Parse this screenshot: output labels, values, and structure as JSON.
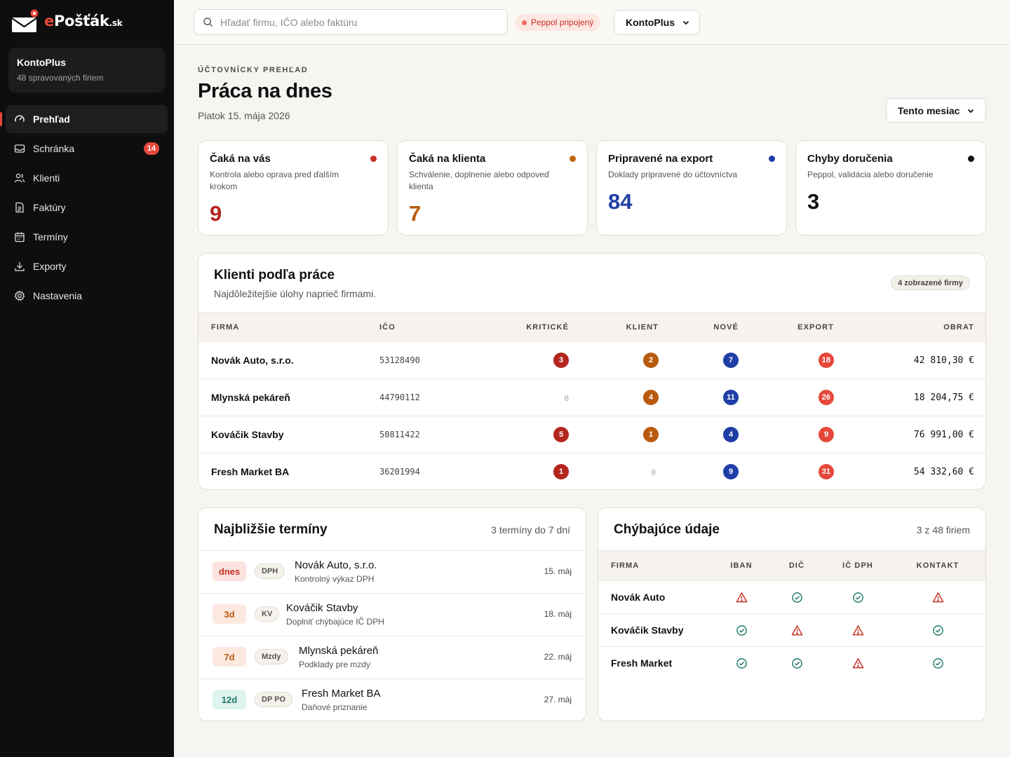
{
  "brand": {
    "e": "e",
    "name": "Pošťák",
    "tld": ".sk"
  },
  "org": {
    "name": "KontoPlus",
    "sub": "48 spravovaných firiem"
  },
  "nav": [
    {
      "label": "Prehľad",
      "icon": "dashboard-icon",
      "active": true
    },
    {
      "label": "Schránka",
      "icon": "inbox-icon",
      "badge": "14"
    },
    {
      "label": "Klienti",
      "icon": "users-icon"
    },
    {
      "label": "Faktúry",
      "icon": "document-icon"
    },
    {
      "label": "Termíny",
      "icon": "calendar-icon"
    },
    {
      "label": "Exporty",
      "icon": "download-icon"
    },
    {
      "label": "Nastavenia",
      "icon": "gear-icon"
    }
  ],
  "topbar": {
    "search_placeholder": "Hľadať firmu, IČO alebo faktúru",
    "peppol": "Peppol pripojený",
    "org_select": "KontoPlus"
  },
  "header": {
    "kicker": "ÚČTOVNÍCKY PREHĽAD",
    "title": "Práca na dnes",
    "date": "Piatok 15. mája 2026",
    "period": "Tento mesiac"
  },
  "stats": [
    {
      "title": "Čaká na vás",
      "desc": "Kontrola alebo oprava pred ďalším krokom",
      "value": "9",
      "color": "#b3261e"
    },
    {
      "title": "Čaká na klienta",
      "desc": "Schválenie, doplnenie alebo odpoveď klienta",
      "value": "7",
      "color": "#b85a0d"
    },
    {
      "title": "Pripravené na export",
      "desc": "Doklady pripravené do účtovníctva",
      "value": "84",
      "color": "#1f3ea6"
    },
    {
      "title": "Chyby doručenia",
      "desc": "Peppol, validácia alebo doručenie",
      "value": "3",
      "color": "#111111"
    }
  ],
  "clients": {
    "title": "Klienti podľa práce",
    "sub": "Najdôležitejšie úlohy naprieč firmami.",
    "chip": "4 zobrazené firmy",
    "columns": [
      "FIRMA",
      "IČO",
      "KRITICKÉ",
      "KLIENT",
      "NOVÉ",
      "EXPORT",
      "OBRAT"
    ],
    "rows": [
      {
        "firm": "Novák Auto, s.r.o.",
        "ico": "53128490",
        "kriticke": "3",
        "klient": "2",
        "nove": "7",
        "export": "18",
        "obrat": "42 810,30 €"
      },
      {
        "firm": "Mlynská pekáreň",
        "ico": "44790112",
        "kriticke": "0",
        "klient": "4",
        "nove": "11",
        "export": "26",
        "obrat": "18 204,75 €"
      },
      {
        "firm": "Kováčik Stavby",
        "ico": "50811422",
        "kriticke": "5",
        "klient": "1",
        "nove": "4",
        "export": "9",
        "obrat": "76 991,00 €"
      },
      {
        "firm": "Fresh Market BA",
        "ico": "36201994",
        "kriticke": "1",
        "klient": "0",
        "nove": "9",
        "export": "31",
        "obrat": "54 332,60 €"
      }
    ]
  },
  "deadlines": {
    "title": "Najbližšie termíny",
    "sub": "3 termíny do 7 dní",
    "items": [
      {
        "badge": "dnes",
        "tag": "DPH",
        "name": "Novák Auto, s.r.o.",
        "note": "Kontrolný výkaz DPH",
        "date": "15. máj"
      },
      {
        "badge": "3d",
        "tag": "KV",
        "name": "Kováčik Stavby",
        "note": "Doplniť chýbajúce IČ DPH",
        "date": "18. máj"
      },
      {
        "badge": "7d",
        "tag": "Mzdy",
        "name": "Mlynská pekáreň",
        "note": "Podklady pre mzdy",
        "date": "22. máj"
      },
      {
        "badge": "12d",
        "tag": "DP PO",
        "name": "Fresh Market BA",
        "note": "Daňové priznanie",
        "date": "27. máj"
      }
    ]
  },
  "missing": {
    "title": "Chýbajúce údaje",
    "sub": "3 z 48 firiem",
    "columns": [
      "FIRMA",
      "IBAN",
      "DIČ",
      "IČ DPH",
      "KONTAKT"
    ],
    "rows": [
      {
        "firm": "Novák Auto",
        "iban": "warning",
        "dic": "ok",
        "icdph": "ok",
        "kontakt": "warning"
      },
      {
        "firm": "Kováčik Stavby",
        "iban": "ok",
        "dic": "warning",
        "icdph": "warning",
        "kontakt": "ok"
      },
      {
        "firm": "Fresh Market",
        "iban": "ok",
        "dic": "ok",
        "icdph": "warning",
        "kontakt": "ok"
      }
    ]
  },
  "colors": {
    "critical": "#b3261e",
    "client": "#b85a0d",
    "new": "#1f3ea6",
    "export": "#e5483b",
    "ok": "#1f7a6a",
    "warning": "#c62f22"
  }
}
